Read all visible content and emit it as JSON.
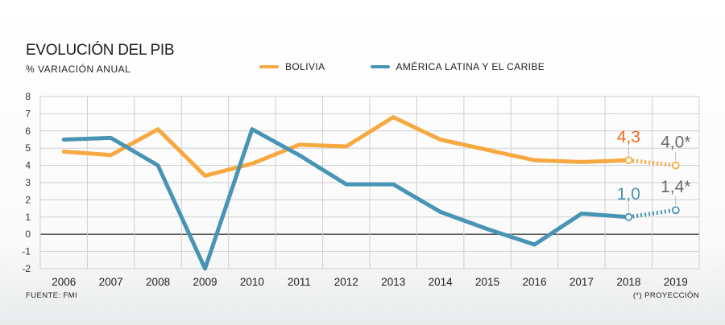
{
  "header": {
    "title": "EVOLUCIÓN DEL PIB",
    "subtitle": "% VARIACIÓN ANUAL"
  },
  "footer": {
    "source": "FUENTE: FMI",
    "note": "(*) PROYECCIÓN"
  },
  "colors": {
    "bolivia": "#f7a941",
    "latam": "#4894b5",
    "bolivia_label": "#f26a1b",
    "projection_label": "#6a6a6a",
    "grid": "#cfcfcf",
    "zero_line": "#444444"
  },
  "chart_data": {
    "type": "line",
    "title": "EVOLUCIÓN DEL PIB",
    "subtitle": "% VARIACIÓN ANUAL",
    "categories": [
      "2006",
      "2007",
      "2008",
      "2009",
      "2010",
      "2011",
      "2012",
      "2013",
      "2014",
      "2015",
      "2016",
      "2017",
      "2018",
      "2019"
    ],
    "ylim": [
      -2,
      8
    ],
    "yticks": [
      "-2",
      "-1",
      "0",
      "1",
      "2",
      "3",
      "4",
      "5",
      "6",
      "7",
      "8"
    ],
    "grid": true,
    "legend_position": "top",
    "projection_from": "2018",
    "series": [
      {
        "name": "BOLIVIA",
        "color_key": "bolivia",
        "values": [
          4.8,
          4.6,
          6.1,
          3.4,
          4.1,
          5.2,
          5.1,
          6.8,
          5.5,
          4.9,
          4.3,
          4.2,
          4.3,
          4.0
        ]
      },
      {
        "name": "AMÉRICA LATINA Y EL CARIBE",
        "color_key": "latam",
        "values": [
          5.5,
          5.6,
          4.0,
          -2.0,
          6.1,
          4.6,
          2.9,
          2.9,
          1.3,
          0.3,
          -0.6,
          1.2,
          1.0,
          1.4
        ]
      }
    ],
    "annotations": [
      {
        "text": "4,3",
        "series": 0,
        "index": 12,
        "color_key": "bolivia_label"
      },
      {
        "text": "4,0*",
        "series": 0,
        "index": 13,
        "color_key": "projection_label"
      },
      {
        "text": "1,0",
        "series": 1,
        "index": 12,
        "color_key": "latam"
      },
      {
        "text": "1,4*",
        "series": 1,
        "index": 13,
        "color_key": "projection_label"
      }
    ]
  }
}
